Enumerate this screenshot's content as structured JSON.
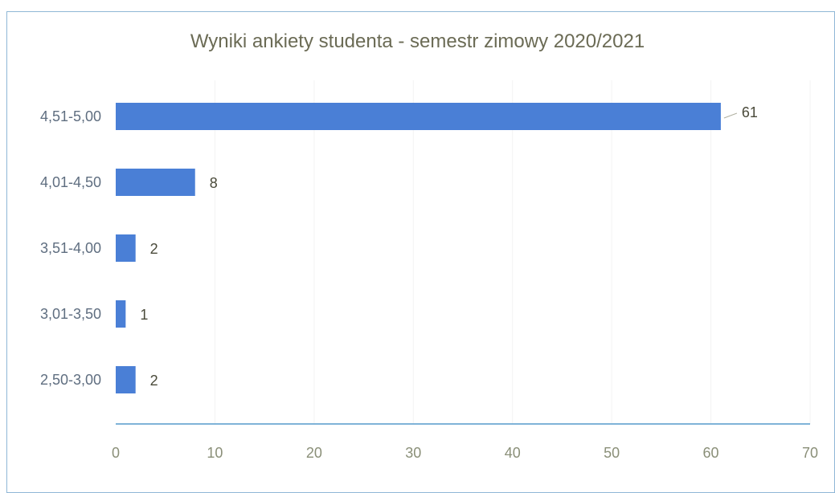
{
  "chart_data": {
    "type": "bar",
    "orientation": "horizontal",
    "title": "Wyniki ankiety studenta - semestr zimowy 2020/2021",
    "categories": [
      "4,51-5,00",
      "4,01-4,50",
      "3,51-4,00",
      "3,01-3,50",
      "2,50-3,00"
    ],
    "values": [
      61,
      8,
      2,
      1,
      2
    ],
    "xlabel": "",
    "ylabel": "",
    "xlim": [
      0,
      70
    ],
    "xticks": [
      "0",
      "10",
      "20",
      "30",
      "40",
      "50",
      "60",
      "70"
    ],
    "grid": true,
    "legend": "none",
    "bar_color": "#4a7fd6",
    "axis_color": "#7fb3d8",
    "grid_color": "#f3f3f3"
  }
}
